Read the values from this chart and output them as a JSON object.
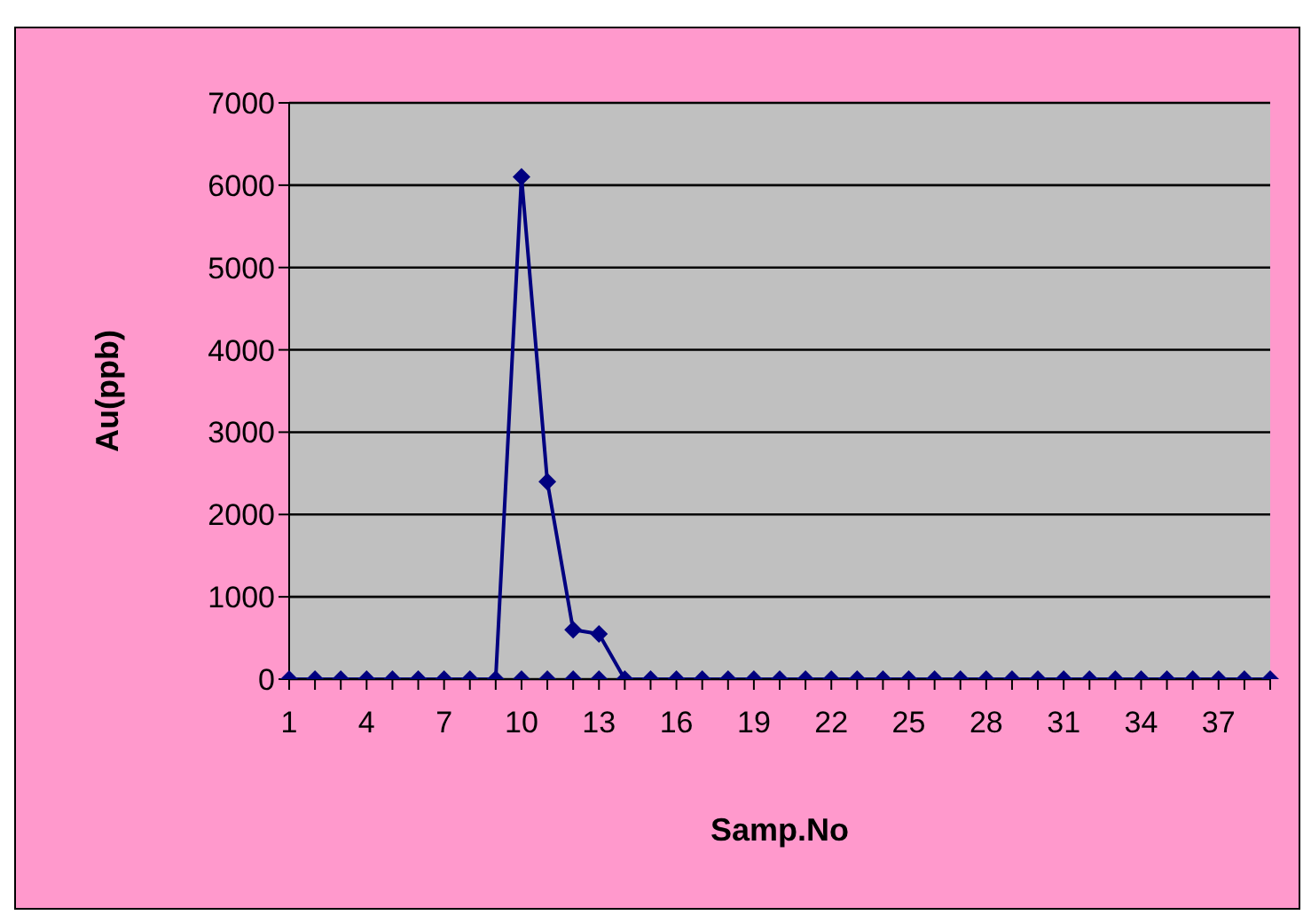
{
  "chart_data": {
    "type": "line",
    "xlabel": "Samp.No",
    "ylabel": "Au(ppb)",
    "categories": [
      "1",
      null,
      null,
      "4",
      null,
      null,
      "7",
      null,
      null,
      "10",
      null,
      null,
      "13",
      null,
      null,
      "16",
      null,
      null,
      "19",
      null,
      null,
      "22",
      null,
      null,
      "25",
      null,
      null,
      "28",
      null,
      null,
      "31",
      null,
      null,
      "34",
      null,
      null,
      "37",
      null,
      null
    ],
    "series": [
      {
        "color": "#000080",
        "values": [
          0,
          0,
          0,
          0,
          0,
          0,
          0,
          0,
          0,
          6100,
          2400,
          600,
          550,
          0,
          0,
          0,
          0,
          0,
          0,
          0,
          0,
          0,
          0,
          0,
          0,
          0,
          0,
          0,
          0,
          0,
          0,
          0,
          0,
          0,
          0,
          0,
          0,
          0,
          0
        ]
      },
      {
        "type": "scatter",
        "color": "#000080",
        "values": [
          null,
          null,
          null,
          null,
          null,
          null,
          null,
          null,
          null,
          0,
          0,
          0,
          0,
          null,
          null,
          null,
          null,
          null,
          null,
          null,
          null,
          null,
          null,
          null,
          null,
          null,
          null,
          null,
          null,
          null,
          null,
          null,
          null,
          null,
          null,
          null,
          null,
          null,
          null
        ]
      }
    ],
    "ylim": [
      0,
      7000
    ],
    "yticks": [
      0,
      1000,
      2000,
      3000,
      4000,
      5000,
      6000,
      7000
    ],
    "grid": "y",
    "legend": false,
    "marker": "diamond",
    "line_style": "solid"
  }
}
